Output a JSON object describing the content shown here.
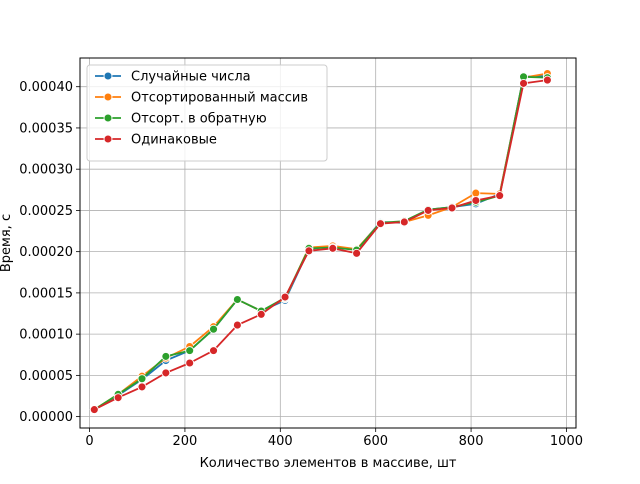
{
  "chart_data": {
    "type": "line",
    "title": "",
    "xlabel": "Количество элементов в массиве, шт",
    "ylabel": "Время, с",
    "xlim": [
      -20,
      1020
    ],
    "ylim": [
      -1.38e-05,
      0.0004348
    ],
    "x_ticks": [
      0,
      200,
      400,
      600,
      800,
      1000
    ],
    "x_tick_labels": [
      "0",
      "200",
      "400",
      "600",
      "800",
      "1000"
    ],
    "y_ticks": [
      0,
      5e-05,
      0.0001,
      0.00015,
      0.0002,
      0.00025,
      0.0003,
      0.00035,
      0.0004
    ],
    "y_tick_labels": [
      "0.00000",
      "0.00005",
      "0.00010",
      "0.00015",
      "0.00020",
      "0.00025",
      "0.00030",
      "0.00035",
      "0.00040"
    ],
    "grid": true,
    "legend_position": "top-left",
    "x": [
      10,
      60,
      110,
      160,
      210,
      260,
      310,
      360,
      410,
      460,
      510,
      560,
      610,
      660,
      710,
      760,
      810,
      860,
      910,
      960
    ],
    "series": [
      {
        "name": "Случайные числа",
        "color": "#1f77b4",
        "values": [
          8.5e-06,
          2.6e-05,
          4.5e-05,
          6.8e-05,
          8e-05,
          0.000106,
          0.000142,
          0.000128,
          0.000141,
          0.000203,
          0.000207,
          0.000202,
          0.000236,
          0.000235,
          0.000251,
          0.000254,
          0.000258,
          0.00027,
          0.000412,
          0.000413
        ]
      },
      {
        "name": "Отсортированный массив",
        "color": "#ff7f0e",
        "values": [
          8.5e-06,
          2.7e-05,
          4.9e-05,
          7.1e-05,
          8.5e-05,
          0.000109,
          0.000142,
          0.000128,
          0.000143,
          0.000205,
          0.000207,
          0.000203,
          0.000235,
          0.000236,
          0.000244,
          0.000254,
          0.000271,
          0.00027,
          0.000411,
          0.000416
        ]
      },
      {
        "name": "Отсорт. в обратную",
        "color": "#2ca02c",
        "values": [
          8.5e-06,
          2.7e-05,
          4.6e-05,
          7.3e-05,
          8e-05,
          0.000106,
          0.000142,
          0.000128,
          0.000144,
          0.000204,
          0.000205,
          0.000202,
          0.000235,
          0.000237,
          0.000251,
          0.000254,
          0.00026,
          0.000268,
          0.000412,
          0.000411
        ]
      },
      {
        "name": "Одинаковые",
        "color": "#d62728",
        "values": [
          8.5e-06,
          2.3e-05,
          3.6e-05,
          5.3e-05,
          6.5e-05,
          8e-05,
          0.000111,
          0.000124,
          0.000145,
          0.000201,
          0.000204,
          0.000198,
          0.000234,
          0.000236,
          0.00025,
          0.000253,
          0.000262,
          0.000268,
          0.000404,
          0.000408
        ]
      }
    ]
  }
}
